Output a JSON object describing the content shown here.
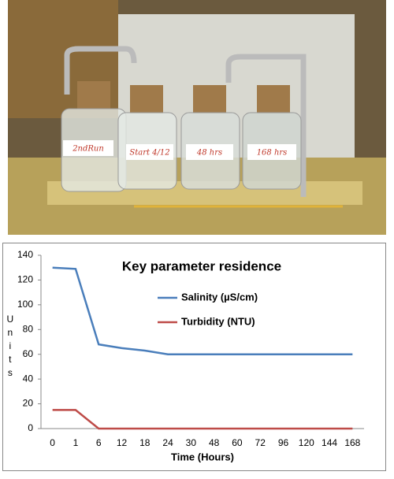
{
  "photo": {
    "jar_labels": [
      "2ndRun",
      "Start 4/12",
      "48 hrs",
      "168 hrs"
    ]
  },
  "chart_data": {
    "type": "line",
    "title": "Key parameter residence",
    "x_label": "Time (Hours)",
    "y_label": "Units",
    "categories": [
      "0",
      "1",
      "6",
      "12",
      "18",
      "24",
      "30",
      "48",
      "60",
      "72",
      "96",
      "120",
      "144",
      "168"
    ],
    "series": [
      {
        "name": "Salinity (µS/cm)",
        "color": "#4a7ebb",
        "values": [
          130,
          129,
          68,
          65,
          63,
          60,
          60,
          60,
          60,
          60,
          60,
          60,
          60,
          60
        ]
      },
      {
        "name": "Turbidity (NTU)",
        "color": "#be4b48",
        "values": [
          15,
          15,
          0,
          0,
          0,
          0,
          0,
          0,
          0,
          0,
          0,
          0,
          0,
          0
        ]
      }
    ],
    "ylim": [
      0,
      140
    ],
    "yticks": [
      0,
      20,
      40,
      60,
      80,
      100,
      120,
      140
    ],
    "grid": false
  }
}
